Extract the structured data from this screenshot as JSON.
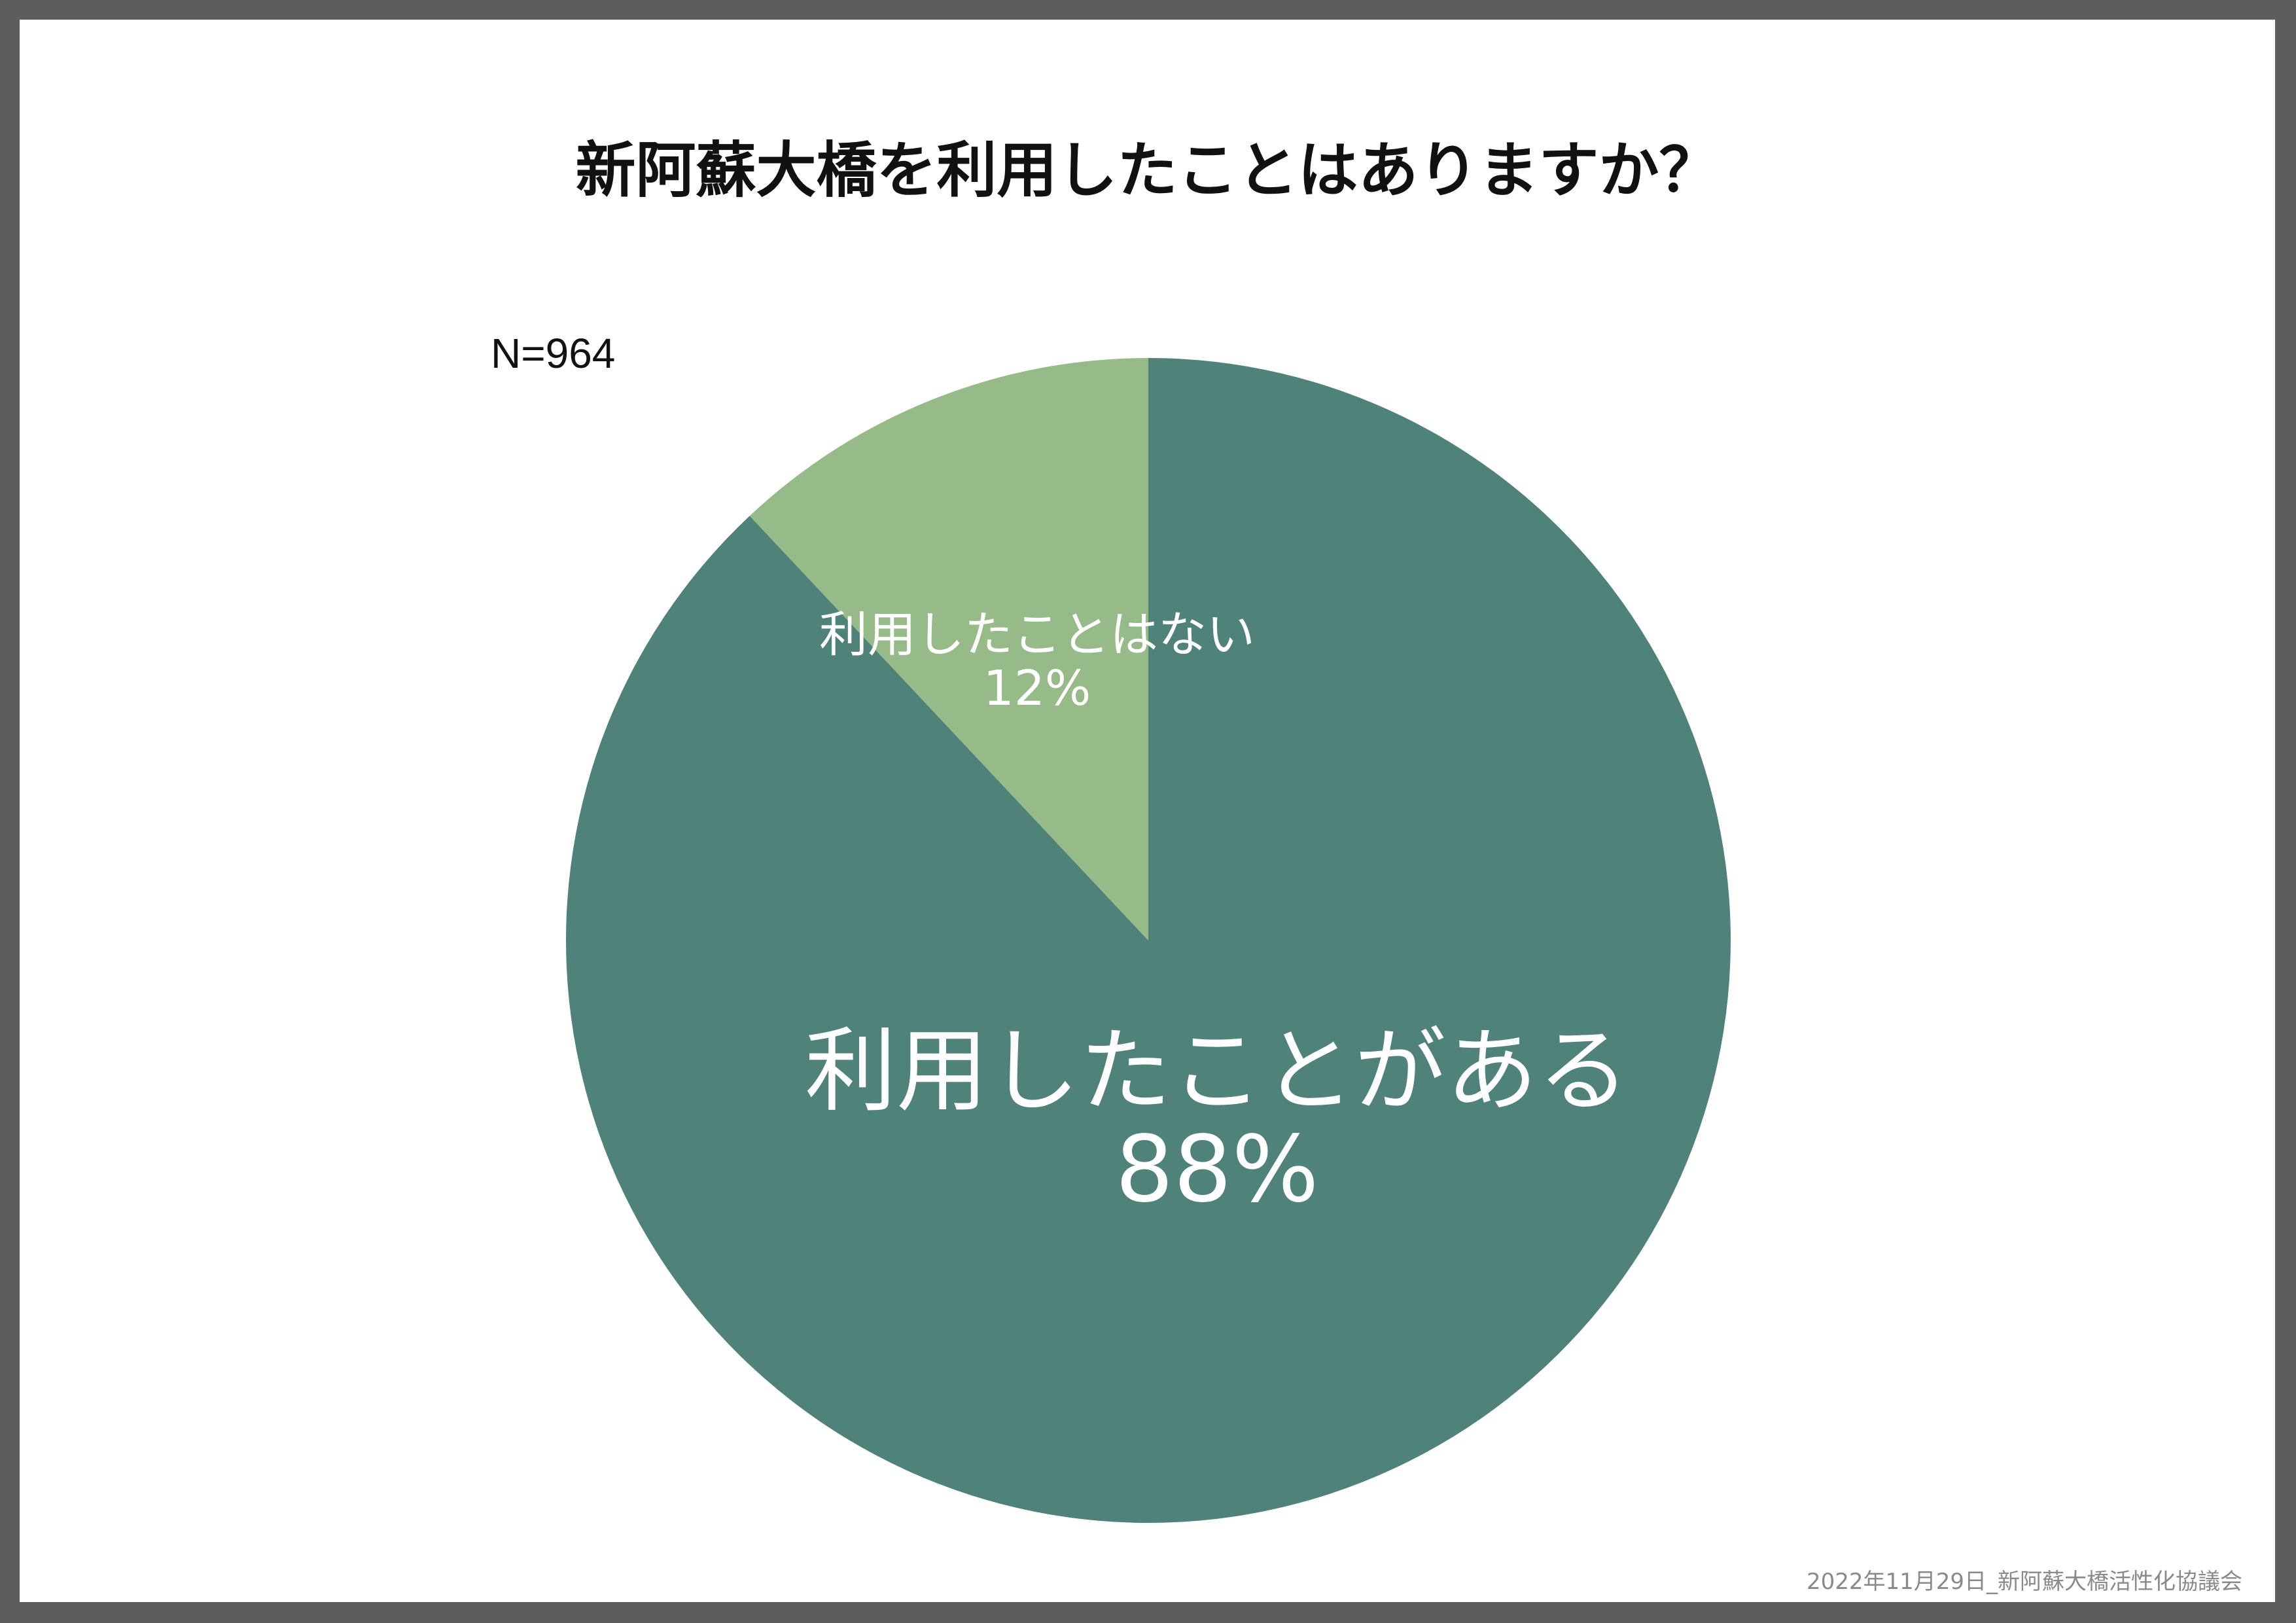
{
  "chart_data": {
    "type": "pie",
    "title": "新阿蘇大橋を利用したことはありますか？",
    "sample_size_label": "N=964",
    "slices": [
      {
        "label": "利用したことがある",
        "value": 88,
        "value_label": "88%",
        "color": "#4f8279"
      },
      {
        "label": "利用したことはない",
        "value": 12,
        "value_label": "12%",
        "color": "#97ba89"
      }
    ],
    "legend": "none"
  },
  "footer": {
    "note": "2022年11月29日_新阿蘇大橋活性化協議会"
  },
  "colors": {
    "frame": "#5d5d5d",
    "background": "#ffffff"
  }
}
